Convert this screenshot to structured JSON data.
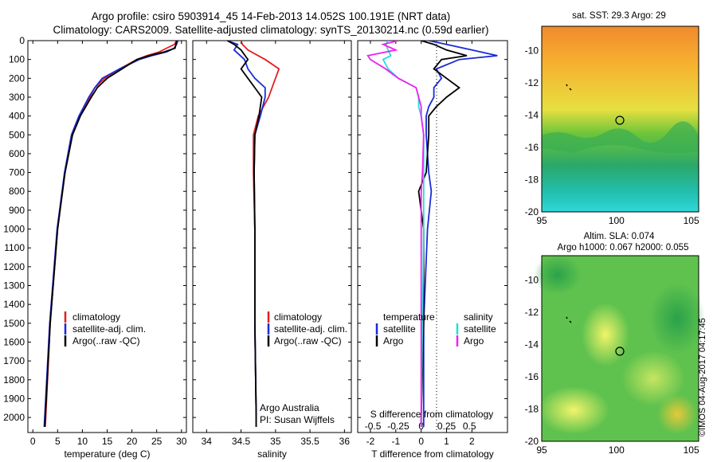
{
  "titles": {
    "line1": "Argo profile: csiro 5903914_45 14-Feb-2013 14.052S 100.191E (NRT data)",
    "line2": "Climatology: CARS2009. Satellite-adjusted climatology: synTS_20130214.nc (0.59d earlier)"
  },
  "colors": {
    "climatology": "#e02020",
    "satellite": "#1a2ad6",
    "argo": "#000000",
    "salinity_sat": "#22dddd",
    "salinity_argo": "#ee22ee"
  },
  "legend": {
    "climatology": "climatology",
    "satellite_adj": "satellite-adj. clim.",
    "argo": "Argo(..raw -QC)",
    "temperature": "temperature",
    "salinity": "salinity",
    "satellite": "satellite",
    "argo_short": "Argo"
  },
  "notes": {
    "argo_australia": "Argo Australia",
    "pi": "PI: Susan Wijffels"
  },
  "maps": {
    "sst_title": "sat. SST: 29.3 Argo: 29",
    "sla_title_1": "Altim. SLA: 0.074",
    "sla_title_2": "Argo h1000: 0.067 h2000: 0.055"
  },
  "credit": "©IMOS 04-Aug-2017 04:17:45",
  "chart_data": [
    {
      "type": "line",
      "xlabel": "temperature (deg C)",
      "ylabel": "",
      "xlim": [
        -1,
        31
      ],
      "ylim": [
        2080,
        0
      ],
      "xticks": [
        0,
        5,
        10,
        15,
        20,
        25,
        30
      ],
      "yticks": [
        0,
        100,
        200,
        300,
        400,
        500,
        600,
        700,
        800,
        900,
        1000,
        1100,
        1200,
        1300,
        1400,
        1500,
        1600,
        1700,
        1800,
        1900,
        2000
      ],
      "y": [
        0,
        20,
        40,
        60,
        80,
        100,
        150,
        200,
        250,
        300,
        400,
        500,
        700,
        1000,
        1500,
        2000,
        2050
      ],
      "series": [
        {
          "name": "climatology",
          "values": [
            29.0,
            28.6,
            27.0,
            25.5,
            23.0,
            21.0,
            17.5,
            14.5,
            12.5,
            11.5,
            9.5,
            8.0,
            6.5,
            5.0,
            3.5,
            2.6,
            2.5
          ]
        },
        {
          "name": "satellite-adj. clim.",
          "values": [
            29.3,
            29.0,
            28.5,
            27.0,
            24.0,
            21.5,
            17.5,
            14.0,
            12.5,
            11.3,
            9.3,
            7.8,
            6.4,
            4.9,
            3.4,
            2.4,
            2.3
          ]
        },
        {
          "name": "Argo(..raw -QC)",
          "values": [
            29.0,
            28.9,
            28.7,
            26.5,
            23.5,
            21.0,
            18.0,
            15.0,
            13.0,
            11.8,
            9.6,
            8.0,
            6.5,
            5.0,
            3.5,
            2.5,
            2.4
          ]
        }
      ]
    },
    {
      "type": "line",
      "xlabel": "salinity",
      "xlim": [
        33.8,
        36.1
      ],
      "ylim": [
        2080,
        0
      ],
      "xticks": [
        34,
        34.5,
        35,
        35.5,
        36
      ],
      "y": [
        0,
        20,
        50,
        100,
        150,
        200,
        250,
        300,
        400,
        500,
        700,
        1000,
        1500,
        2000,
        2050
      ],
      "series": [
        {
          "name": "climatology",
          "values": [
            34.5,
            34.52,
            34.6,
            34.85,
            35.05,
            35.0,
            34.95,
            34.9,
            34.75,
            34.68,
            34.68,
            34.7,
            34.7,
            34.72,
            34.72
          ]
        },
        {
          "name": "satellite-adj. clim.",
          "values": [
            34.3,
            34.45,
            34.4,
            34.55,
            34.6,
            34.7,
            34.85,
            34.85,
            34.78,
            34.7,
            34.69,
            34.7,
            34.7,
            34.72,
            34.72
          ]
        },
        {
          "name": "Argo(..raw -QC)",
          "values": [
            34.3,
            34.4,
            34.5,
            34.6,
            34.5,
            34.6,
            34.7,
            34.8,
            34.76,
            34.7,
            34.69,
            34.7,
            34.7,
            34.72,
            34.72
          ]
        }
      ]
    },
    {
      "type": "line",
      "xlabel": "T difference from climatology",
      "xlabel_top": "S difference from climatology",
      "xlim": [
        -2.5,
        3.4
      ],
      "ylim": [
        2080,
        0
      ],
      "xticks": [
        -2,
        -1,
        0,
        1,
        2
      ],
      "top_ticks": [
        {
          "label": "-0.5",
          "x": -1.9
        },
        {
          "label": "-0.25",
          "x": -0.9
        },
        {
          "label": "0",
          "x": 0
        },
        {
          "label": "0.25",
          "x": 1.0
        },
        {
          "label": "0.5",
          "x": 1.9
        }
      ],
      "y": [
        0,
        20,
        50,
        80,
        100,
        150,
        200,
        250,
        300,
        350,
        400,
        500,
        700,
        800,
        1000,
        1500,
        2000,
        2050
      ],
      "series": [
        {
          "name": "temperature satellite",
          "values": [
            0.3,
            1.0,
            2.0,
            3.0,
            1.5,
            0.6,
            0.8,
            0.5,
            0.5,
            0.3,
            0.2,
            0.2,
            0.3,
            0.4,
            0.25,
            0.1,
            0.1,
            0.1
          ]
        },
        {
          "name": "temperature Argo",
          "values": [
            0.0,
            0.5,
            1.0,
            1.8,
            0.8,
            0.5,
            1.0,
            1.5,
            1.0,
            0.6,
            0.3,
            0.3,
            0.2,
            -0.1,
            0.1,
            0.1,
            0.0,
            0.0
          ]
        },
        {
          "name": "salinity satellite",
          "values": [
            -1.3,
            -1.4,
            -1.3,
            -1.2,
            -1.5,
            -1.3,
            -0.9,
            -0.2,
            -0.1,
            -0.1,
            0.0,
            0.1,
            0.1,
            0.1,
            0.1,
            0.05,
            0.0,
            0.0
          ]
        },
        {
          "name": "salinity Argo",
          "values": [
            -0.9,
            -1.5,
            -1.0,
            -2.1,
            -2.0,
            -1.4,
            -0.9,
            -0.2,
            -0.1,
            0.0,
            0.0,
            0.1,
            0.05,
            0.0,
            0.0,
            0.0,
            0.0,
            0.0
          ]
        }
      ]
    },
    {
      "type": "heatmap",
      "title": "sat. SST: 29.3 Argo: 29",
      "xlim": [
        95,
        105.5
      ],
      "ylim": [
        -20,
        -8.5
      ],
      "xticks": [
        95,
        100,
        105
      ],
      "yticks": [
        -10,
        -12,
        -14,
        -16,
        -18,
        -20
      ],
      "argo_position": [
        100.191,
        -14.052
      ]
    },
    {
      "type": "heatmap",
      "title": "Altim. SLA: 0.074",
      "xlim": [
        95,
        105.5
      ],
      "ylim": [
        -20,
        -8.5
      ],
      "xticks": [
        95,
        100,
        105
      ],
      "yticks": [
        -10,
        -12,
        -14,
        -16,
        -18,
        -20
      ],
      "argo_position": [
        100.191,
        -14.052
      ]
    }
  ]
}
